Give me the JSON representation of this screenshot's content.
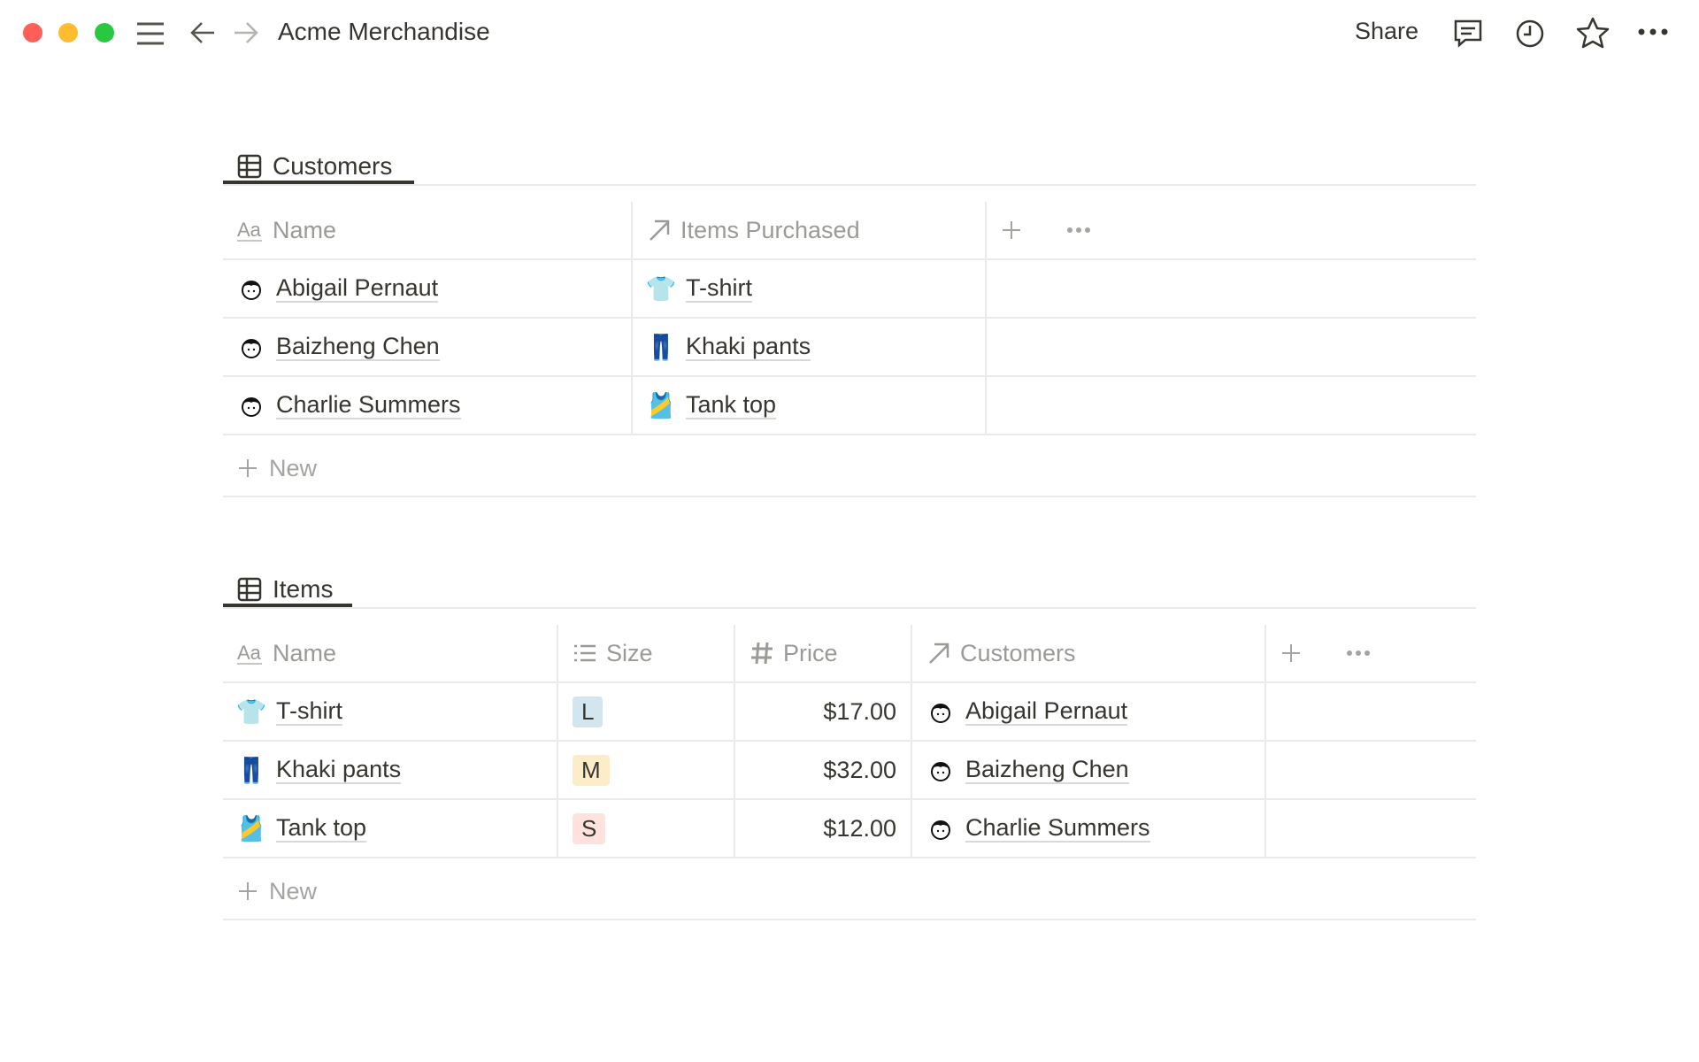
{
  "window": {
    "title": "Acme Merchandise",
    "share_label": "Share",
    "colors": {
      "close": "#ff5f57",
      "minimize": "#febc2e",
      "zoom": "#28c840"
    }
  },
  "toolbar": {
    "icons": [
      "menu-icon",
      "back-arrow-icon",
      "forward-arrow-icon",
      "comment-icon",
      "history-clock-icon",
      "star-icon",
      "more-icon"
    ]
  },
  "customers": {
    "tab_label": "Customers",
    "columns": [
      "Name",
      "Items Purchased"
    ],
    "rows": [
      {
        "name": "Abigail Pernaut",
        "item": "T-shirt",
        "item_icon": "👕"
      },
      {
        "name": "Baizheng Chen",
        "item": "Khaki pants",
        "item_icon": "👖"
      },
      {
        "name": "Charlie Summers",
        "item": "Tank top",
        "item_icon": "🎽"
      }
    ],
    "new_label": "New"
  },
  "items": {
    "tab_label": "Items",
    "columns": [
      "Name",
      "Size",
      "Price",
      "Customers"
    ],
    "rows": [
      {
        "name": "T-shirt",
        "icon": "👕",
        "size": "L",
        "size_color": "#d3e5ef",
        "price": "$17.00",
        "customer": "Abigail Pernaut"
      },
      {
        "name": "Khaki pants",
        "icon": "👖",
        "size": "M",
        "size_color": "#fdecc8",
        "price": "$32.00",
        "customer": "Baizheng Chen"
      },
      {
        "name": "Tank top",
        "icon": "🎽",
        "size": "S",
        "size_color": "#ffe2dd",
        "price": "$12.00",
        "customer": "Charlie Summers"
      }
    ],
    "new_label": "New"
  }
}
